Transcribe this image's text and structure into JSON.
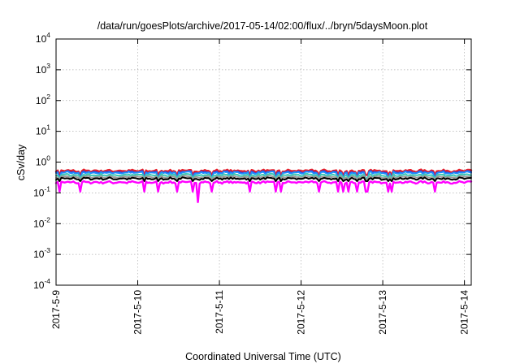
{
  "chart_data": {
    "type": "line",
    "title": "/data/run/goesPlots/archive/2017-05-14/02:00/flux/../bryn/5daysMoon.plot",
    "xlabel": "Coordinated Universal Time (UTC)",
    "ylabel": "cSv/day",
    "yscale": "log",
    "ylim": [
      0.0001,
      10000
    ],
    "yticks": [
      {
        "base": "10",
        "exp": "-4",
        "value": 0.0001
      },
      {
        "base": "10",
        "exp": "-3",
        "value": 0.001
      },
      {
        "base": "10",
        "exp": "-2",
        "value": 0.01
      },
      {
        "base": "10",
        "exp": "-1",
        "value": 0.1
      },
      {
        "base": "10",
        "exp": "0",
        "value": 1
      },
      {
        "base": "10",
        "exp": "1",
        "value": 10
      },
      {
        "base": "10",
        "exp": "2",
        "value": 100
      },
      {
        "base": "10",
        "exp": "3",
        "value": 1000
      },
      {
        "base": "10",
        "exp": "4",
        "value": 10000
      }
    ],
    "xlim": [
      "2017-05-09",
      "2017-05-14T02:00"
    ],
    "xticks": [
      "2017-5-9",
      "2017-5-10",
      "2017-5-11",
      "2017-5-12",
      "2017-5-13",
      "2017-5-14"
    ],
    "grid": true,
    "series": [
      {
        "color": "#e8202a",
        "base": 0.52,
        "dip_to": 0.38,
        "x_start": "2017-05-09",
        "x_end": "2017-05-14T02:00"
      },
      {
        "color": "#2a3be0",
        "base": 0.47,
        "dip_to": 0.28,
        "x_start": "2017-05-09",
        "x_end": "2017-05-14T02:00"
      },
      {
        "color": "#1e90ff",
        "base": 0.45,
        "dip_to": 0.26,
        "x_start": "2017-05-09",
        "x_end": "2017-05-14T02:00"
      },
      {
        "color": "#3cc8b4",
        "base": 0.38,
        "dip_to": 0.3,
        "x_start": "2017-05-09",
        "x_end": "2017-05-14T02:00"
      },
      {
        "color": "#9a9a9a",
        "base": 0.33,
        "dip_to": 0.27,
        "x_start": "2017-05-09",
        "x_end": "2017-05-14T02:00"
      },
      {
        "color": "#000000",
        "base": 0.29,
        "dip_to": 0.24,
        "x_start": "2017-05-09",
        "x_end": "2017-05-14T02:00"
      },
      {
        "color": "#ff00ff",
        "base": 0.22,
        "dip_to": 0.11,
        "deep_dip": 0.05,
        "x_start": "2017-05-09",
        "x_end": "2017-05-14T02:00"
      }
    ]
  }
}
